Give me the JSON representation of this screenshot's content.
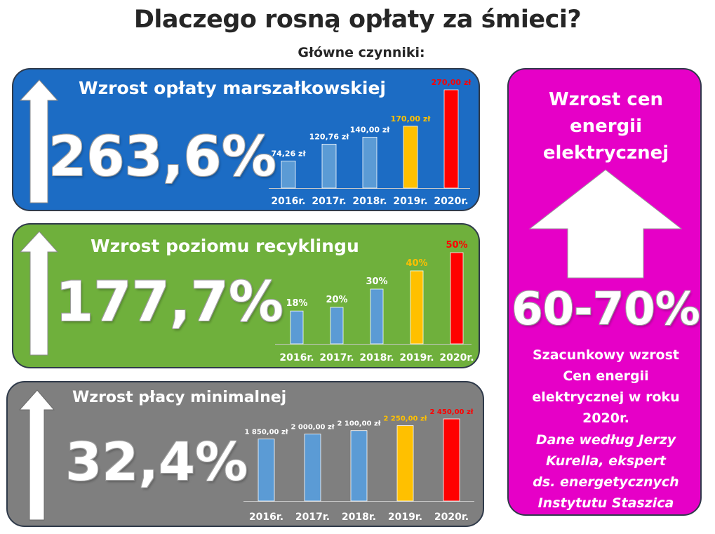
{
  "title": "Dlaczego rosną opłaty za śmieci?",
  "subtitle": "Główne czynniki:",
  "colors": {
    "bar_default": "#5b9bd5",
    "bar_2019": "#ffc000",
    "bar_2020": "#ff0000",
    "label_2019": "#ffc000",
    "label_2020": "#ff0000",
    "panel_blue": "#1c6cc4",
    "panel_green": "#6fb03c",
    "panel_gray": "#7f7f7f",
    "panel_pink": "#e600c7"
  },
  "panels": {
    "blue": {
      "heading": "Wzrost opłaty marszałkowskiej",
      "percent": "263,6%"
    },
    "green": {
      "heading": "Wzrost poziomu recyklingu",
      "percent": "177,7%"
    },
    "gray": {
      "heading": "Wzrost płacy minimalnej",
      "percent": "32,4%"
    },
    "pink": {
      "heading_lines": [
        "Wzrost cen",
        "energii",
        "elektrycznej"
      ],
      "percent": "60-70%",
      "desc_lines": [
        "Szacunkowy wzrost",
        "Cen energii",
        "elektrycznej w roku",
        "2020r."
      ],
      "source_lines": [
        "Dane według Jerzy",
        "Kurella, ekspert",
        "ds. energetycznych",
        "Instytutu Staszica"
      ]
    }
  },
  "chart_data": [
    {
      "type": "bar",
      "categories": [
        "2016r.",
        "2017r.",
        "2018r.",
        "2019r.",
        "2020r."
      ],
      "values": [
        74.26,
        120.76,
        140.0,
        170.0,
        270.0
      ],
      "labels": [
        "74,26 zł",
        "120,76 zł",
        "140,00 zł",
        "170,00 zł",
        "270,00 zł"
      ],
      "title": "Wzrost opłaty marszałkowskiej",
      "ylim": [
        0,
        270
      ]
    },
    {
      "type": "bar",
      "categories": [
        "2016r.",
        "2017r.",
        "2018r.",
        "2019r.",
        "2020r."
      ],
      "values": [
        18,
        20,
        30,
        40,
        50
      ],
      "labels": [
        "18%",
        "20%",
        "30%",
        "40%",
        "50%"
      ],
      "title": "Wzrost poziomu recyklingu",
      "ylim": [
        0,
        50
      ]
    },
    {
      "type": "bar",
      "categories": [
        "2016r.",
        "2017r.",
        "2018r.",
        "2019r.",
        "2020r."
      ],
      "values": [
        1850,
        2000,
        2100,
        2250,
        2450
      ],
      "labels": [
        "1 850,00 zł",
        "2 000,00 zł",
        "2 100,00 zł",
        "2 250,00 zł",
        "2 450,00 zł"
      ],
      "title": "Wzrost płacy minimalnej",
      "ylim": [
        0,
        2450
      ]
    }
  ]
}
